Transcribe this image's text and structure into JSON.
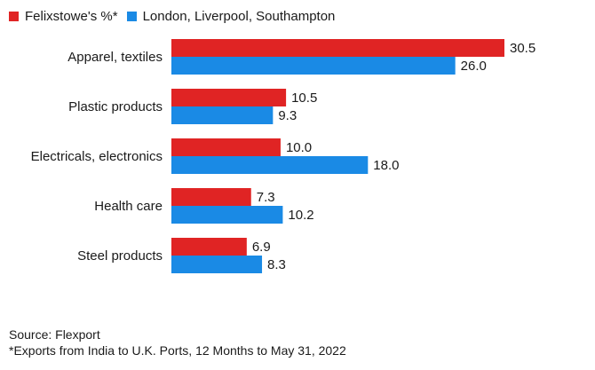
{
  "colors": {
    "felixstowe": "#e02424",
    "others": "#1a8ae5"
  },
  "legend": {
    "felixstowe_label": "Felixstowe's %*",
    "others_label": "London, Liverpool, Southampton"
  },
  "chart_data": {
    "type": "bar",
    "orientation": "horizontal",
    "categories": [
      "Apparel, textiles",
      "Plastic products",
      "Electricals, electronics",
      "Health care",
      "Steel products"
    ],
    "series": [
      {
        "name": "Felixstowe's %*",
        "values": [
          30.5,
          10.5,
          10.0,
          7.3,
          6.9
        ]
      },
      {
        "name": "London, Liverpool, Southampton",
        "values": [
          26.0,
          9.3,
          18.0,
          10.2,
          8.3
        ]
      }
    ],
    "value_labels": [
      [
        "30.5",
        "10.5",
        "10.0",
        "7.3",
        "6.9"
      ],
      [
        "26.0",
        "9.3",
        "18.0",
        "10.2",
        "8.3"
      ]
    ],
    "xlim": [
      0,
      30.5
    ],
    "legend_position": "top-left",
    "grid": false
  },
  "footer": {
    "source": "Source: Flexport",
    "note": "*Exports from India to U.K. Ports, 12 Months to May 31, 2022"
  }
}
